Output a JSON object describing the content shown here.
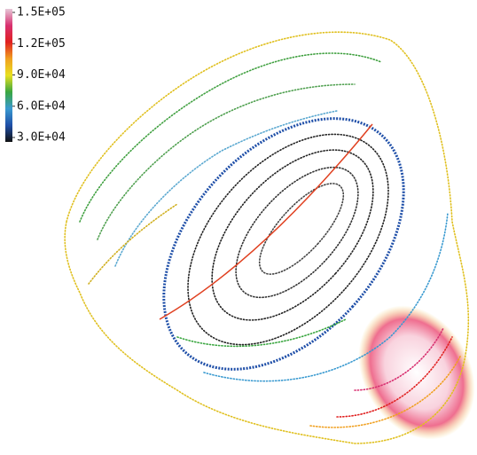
{
  "chart_data": {
    "type": "contour",
    "clim": [
      30000,
      150000
    ],
    "cticks": [
      {
        "value": 150000,
        "label": "1.5E+05"
      },
      {
        "value": 120000,
        "label": "1.2E+05"
      },
      {
        "value": 90000,
        "label": "9.0E+04"
      },
      {
        "value": 60000,
        "label": "6.0E+04"
      },
      {
        "value": 30000,
        "label": "3.0E+04"
      }
    ],
    "colormap": [
      "#111111",
      "#1f4fa8",
      "#3a9ad0",
      "#3aa640",
      "#e8e020",
      "#f0a020",
      "#e02020",
      "#d83070",
      "#e6c8d8"
    ]
  }
}
